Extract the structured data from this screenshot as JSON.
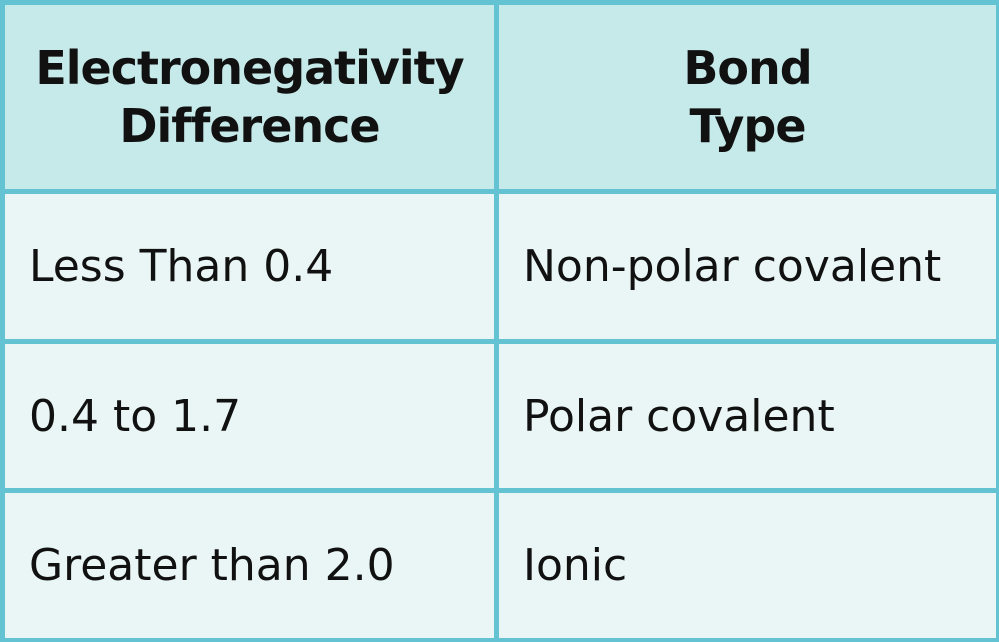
{
  "table": {
    "headers": [
      {
        "line1": "Electronegativity",
        "line2": "Difference"
      },
      {
        "line1": "Bond",
        "line2": "Type"
      }
    ],
    "rows": [
      {
        "difference": "Less Than 0.4",
        "bond_type": "Non-polar covalent"
      },
      {
        "difference": "0.4 to 1.7",
        "bond_type": "Polar covalent"
      },
      {
        "difference": "Greater than 2.0",
        "bond_type": "Ionic"
      }
    ]
  },
  "colors": {
    "border": "#63c3d3",
    "header_bg": "#c6e9e9",
    "body_bg": "#e9f6f5"
  }
}
